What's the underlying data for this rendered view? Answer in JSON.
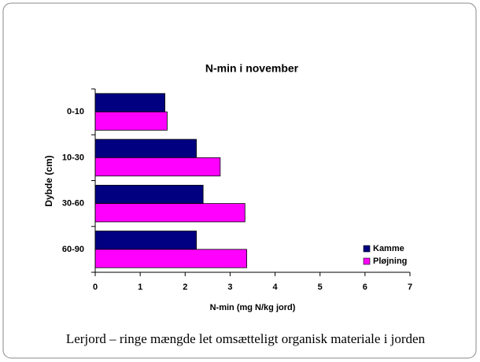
{
  "chart_data": {
    "type": "hbar",
    "title": "N-min i november",
    "x_label": "N-min (mg N/kg jord)",
    "y_label": "Dybde (cm)",
    "categories": [
      "0-10",
      "10-30",
      "30-60",
      "60-90"
    ],
    "series": [
      {
        "name": "Kamme",
        "color": "#000080",
        "values": [
          1.55,
          2.25,
          2.4,
          2.25
        ]
      },
      {
        "name": "Pløjning",
        "color": "#ff00ff",
        "values": [
          1.6,
          2.78,
          3.33,
          3.37
        ]
      }
    ],
    "xlim": [
      0,
      7
    ],
    "xticks": [
      0,
      1,
      2,
      3,
      4,
      5,
      6,
      7
    ],
    "grid": false,
    "legend": "lower right"
  },
  "caption": "Lerjord – ringe mængde let omsætteligt organisk materiale i jorden"
}
